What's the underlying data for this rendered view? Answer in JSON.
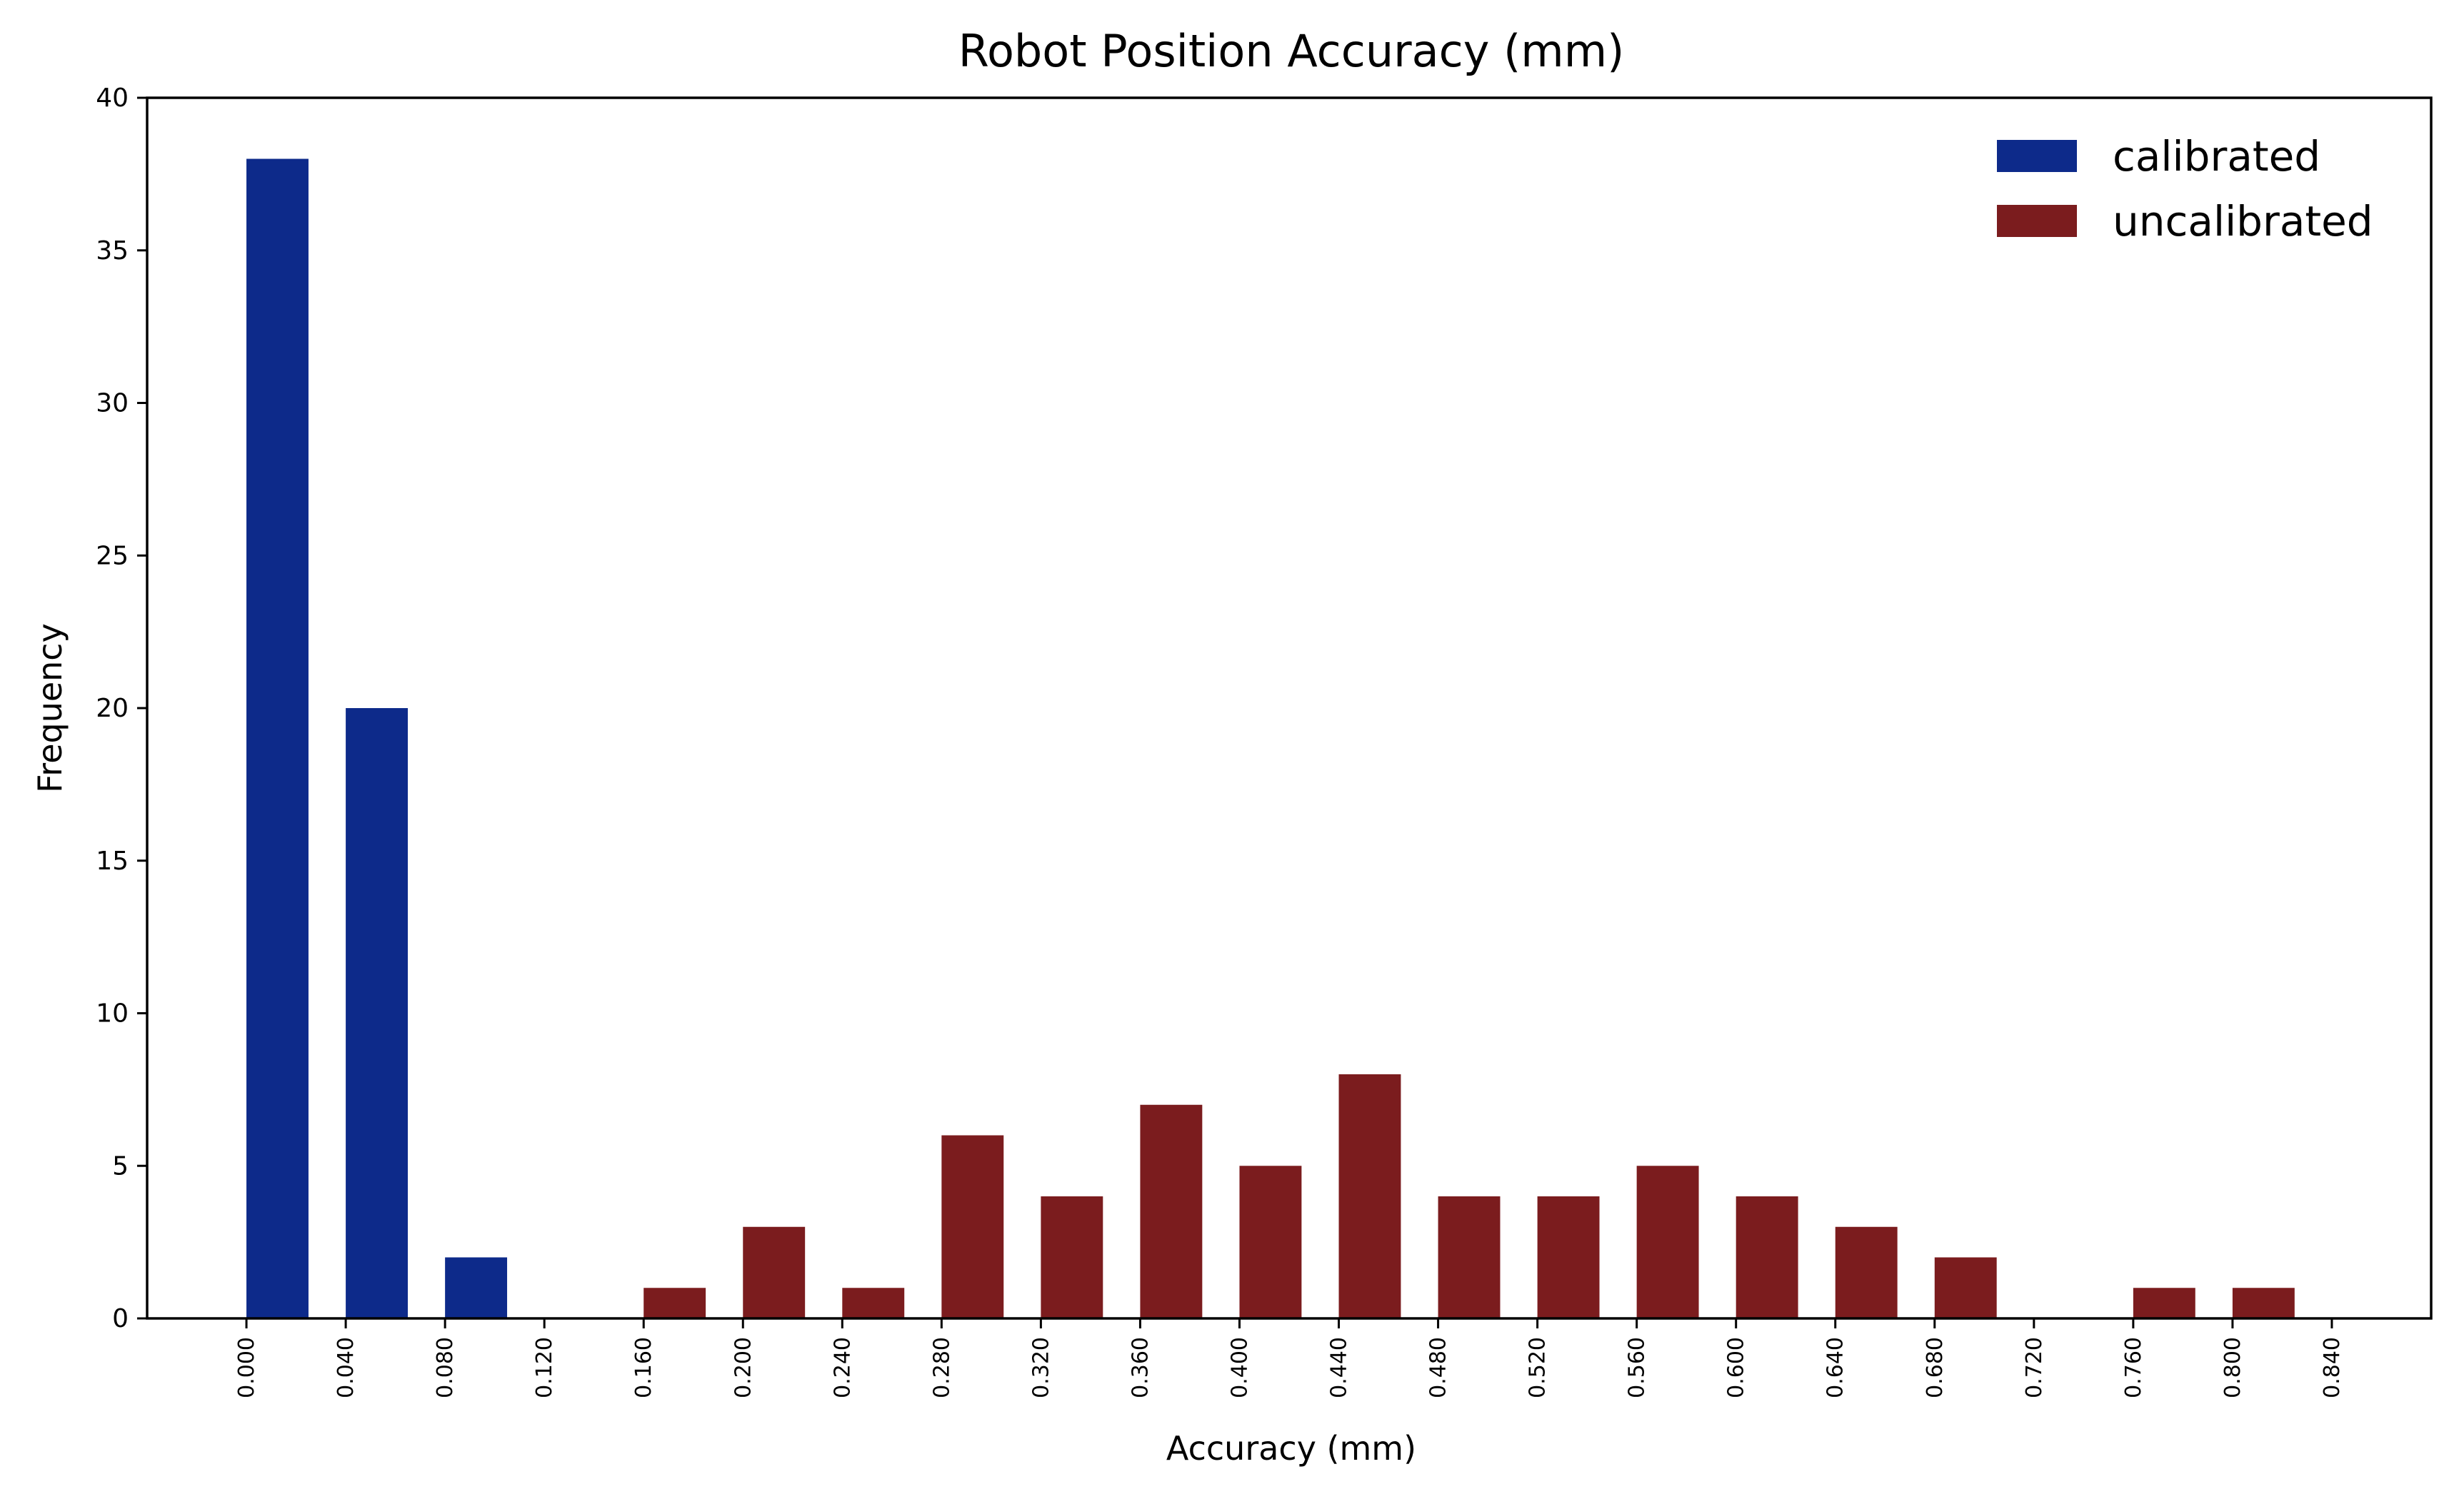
{
  "chart_data": {
    "type": "bar",
    "title": "Robot Position Accuracy (mm)",
    "xlabel": "Accuracy (mm)",
    "ylabel": "Frequency",
    "ylim": [
      0,
      40
    ],
    "xlim": [
      -0.04,
      0.88
    ],
    "yticks": [
      0,
      5,
      10,
      15,
      20,
      25,
      30,
      35,
      40
    ],
    "xticks": [
      0.0,
      0.04,
      0.08,
      0.12,
      0.16,
      0.2,
      0.24,
      0.28,
      0.32,
      0.36,
      0.4,
      0.44,
      0.48,
      0.52,
      0.56,
      0.6,
      0.64,
      0.68,
      0.72,
      0.76,
      0.8,
      0.84
    ],
    "xtick_labels": [
      "0.000",
      "0.040",
      "0.080",
      "0.120",
      "0.160",
      "0.200",
      "0.240",
      "0.280",
      "0.320",
      "0.360",
      "0.400",
      "0.440",
      "0.480",
      "0.520",
      "0.560",
      "0.600",
      "0.640",
      "0.680",
      "0.720",
      "0.760",
      "0.800",
      "0.840"
    ],
    "bin_width": 0.04,
    "bar_fraction": 0.625,
    "grid": false,
    "legend_position": "top-right",
    "series": [
      {
        "name": "calibrated",
        "color": "#0d2a8a",
        "x": [
          0.0,
          0.04,
          0.08
        ],
        "values": [
          38,
          20,
          2
        ]
      },
      {
        "name": "uncalibrated",
        "color": "#7b1c1e",
        "x": [
          0.16,
          0.2,
          0.24,
          0.28,
          0.32,
          0.36,
          0.4,
          0.44,
          0.48,
          0.52,
          0.56,
          0.6,
          0.64,
          0.68,
          0.72,
          0.76,
          0.8
        ],
        "values": [
          1,
          3,
          1,
          6,
          4,
          7,
          5,
          8,
          4,
          4,
          5,
          4,
          3,
          2,
          0,
          1,
          1
        ]
      }
    ]
  }
}
